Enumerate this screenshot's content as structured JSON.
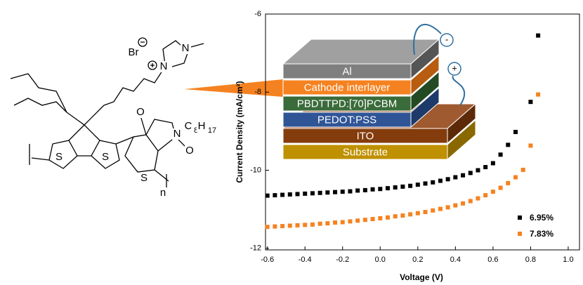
{
  "chart_data": {
    "type": "scatter",
    "x_label": "Voltage (V)",
    "y_label": "Current Density (mA/cm²)",
    "xlim": [
      -0.61,
      1.06
    ],
    "ylim": [
      -12.04,
      -6
    ],
    "xticks": [
      -0.6,
      -0.4,
      -0.2,
      {
        "value": 0,
        "label": "0.0"
      },
      0.2,
      0.4,
      0.6,
      0.8,
      {
        "value": 1,
        "label": "1.0"
      }
    ],
    "yticks": [
      -12,
      -10,
      -8,
      -6
    ],
    "legend": "lower right",
    "series": [
      {
        "name": "6.95%",
        "color": "#000000",
        "x": [
          -0.6,
          -0.56,
          -0.52,
          -0.48,
          -0.44,
          -0.4,
          -0.36,
          -0.32,
          -0.28,
          -0.24,
          -0.2,
          -0.16,
          -0.12,
          -0.08,
          -0.04,
          0,
          0.04,
          0.08,
          0.12,
          0.16,
          0.2,
          0.24,
          0.28,
          0.32,
          0.36,
          0.4,
          0.44,
          0.48,
          0.52,
          0.56,
          0.6,
          0.64,
          0.68,
          0.72,
          0.8,
          0.84
        ],
        "values": [
          -10.65,
          -10.64,
          -10.63,
          -10.62,
          -10.61,
          -10.6,
          -10.59,
          -10.58,
          -10.57,
          -10.56,
          -10.55,
          -10.54,
          -10.52,
          -10.51,
          -10.49,
          -10.48,
          -10.46,
          -10.44,
          -10.42,
          -10.4,
          -10.37,
          -10.34,
          -10.31,
          -10.27,
          -10.23,
          -10.18,
          -10.13,
          -10.07,
          -10.0,
          -9.92,
          -9.82,
          -9.6,
          -9.35,
          -9.02,
          -8.25,
          -6.55
        ]
      },
      {
        "name": "7.83%",
        "color": "#f58220",
        "x": [
          -0.6,
          -0.56,
          -0.52,
          -0.48,
          -0.44,
          -0.4,
          -0.36,
          -0.32,
          -0.28,
          -0.24,
          -0.2,
          -0.16,
          -0.12,
          -0.08,
          -0.04,
          0,
          0.04,
          0.08,
          0.12,
          0.16,
          0.2,
          0.24,
          0.28,
          0.32,
          0.36,
          0.4,
          0.44,
          0.48,
          0.52,
          0.56,
          0.6,
          0.64,
          0.68,
          0.72,
          0.76,
          0.8,
          0.84
        ],
        "values": [
          -11.45,
          -11.44,
          -11.43,
          -11.42,
          -11.41,
          -11.4,
          -11.39,
          -11.37,
          -11.36,
          -11.34,
          -11.33,
          -11.31,
          -11.29,
          -11.27,
          -11.25,
          -11.23,
          -11.21,
          -11.18,
          -11.16,
          -11.13,
          -11.1,
          -11.07,
          -11.03,
          -10.99,
          -10.95,
          -10.9,
          -10.85,
          -10.79,
          -10.72,
          -10.64,
          -10.55,
          -10.45,
          -10.33,
          -10.18,
          -9.99,
          -9.37,
          -8.06
        ]
      }
    ]
  },
  "device": {
    "layers": [
      "Al",
      "Cathode interlayer",
      "PBDTTPD:[70]PCBM",
      "PEDOT:PSS",
      "ITO",
      "Substrate"
    ],
    "charges": [
      "-",
      "+"
    ]
  },
  "molecule": {
    "labels": [
      "Br",
      "N",
      "N",
      "O",
      "N",
      "C",
      "8",
      "H",
      "17",
      "O",
      "S",
      "S",
      "S",
      "n"
    ]
  }
}
